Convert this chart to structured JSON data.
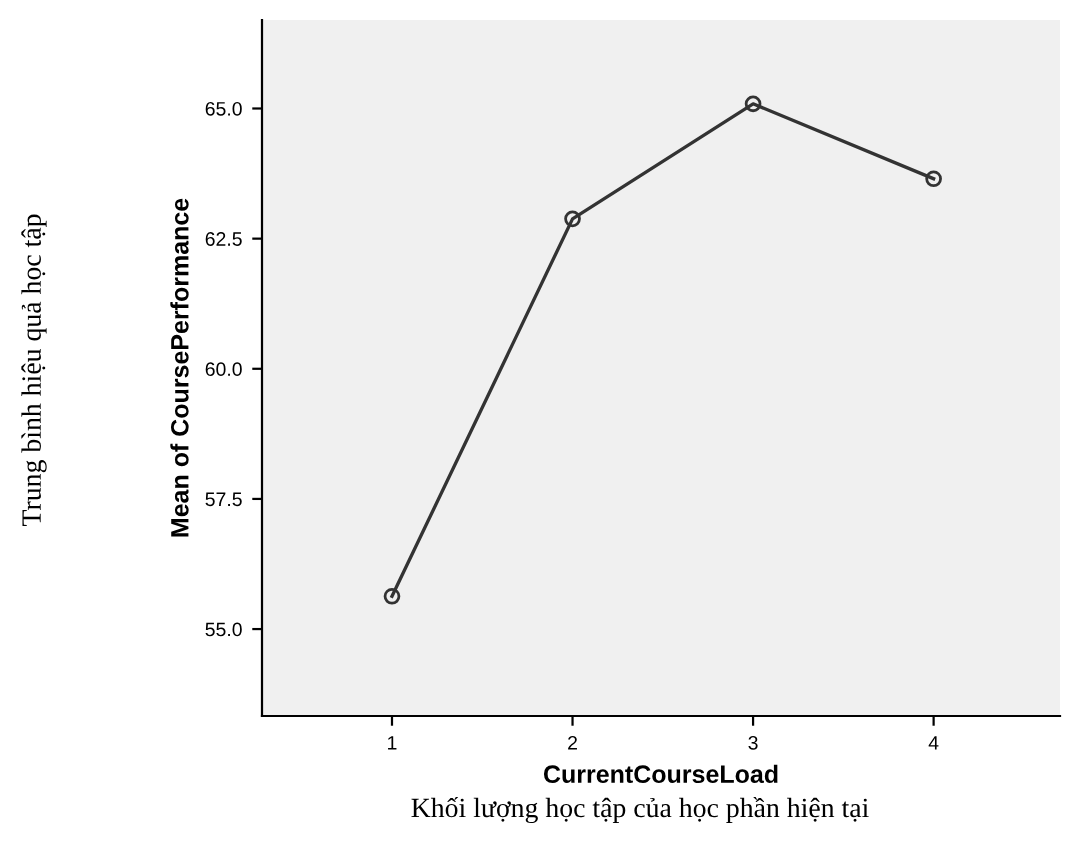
{
  "chart_data": {
    "type": "line",
    "xlabel": "CurrentCourseLoad",
    "ylabel": "Mean of CoursePerformance",
    "categories": [
      "1",
      "2",
      "3",
      "4"
    ],
    "series": [
      {
        "color": "#333333",
        "values": [
          55.63,
          62.88,
          65.09,
          63.65
        ]
      }
    ],
    "ylim": [
      53.33,
      66.7
    ],
    "yticks": [
      {
        "value": 55,
        "label": "55.0"
      },
      {
        "value": 57.5,
        "label": "57.5"
      },
      {
        "value": 60,
        "label": "60.0"
      },
      {
        "value": 62.5,
        "label": "62.5"
      },
      {
        "value": 65,
        "label": "65.0"
      }
    ],
    "marker": "circle",
    "line_style": "solid",
    "grid": false,
    "legend": false,
    "annotations": [
      "Trung bình hiệu quả học tập",
      "Khối lượng học tập của học phần hiện tại"
    ]
  }
}
